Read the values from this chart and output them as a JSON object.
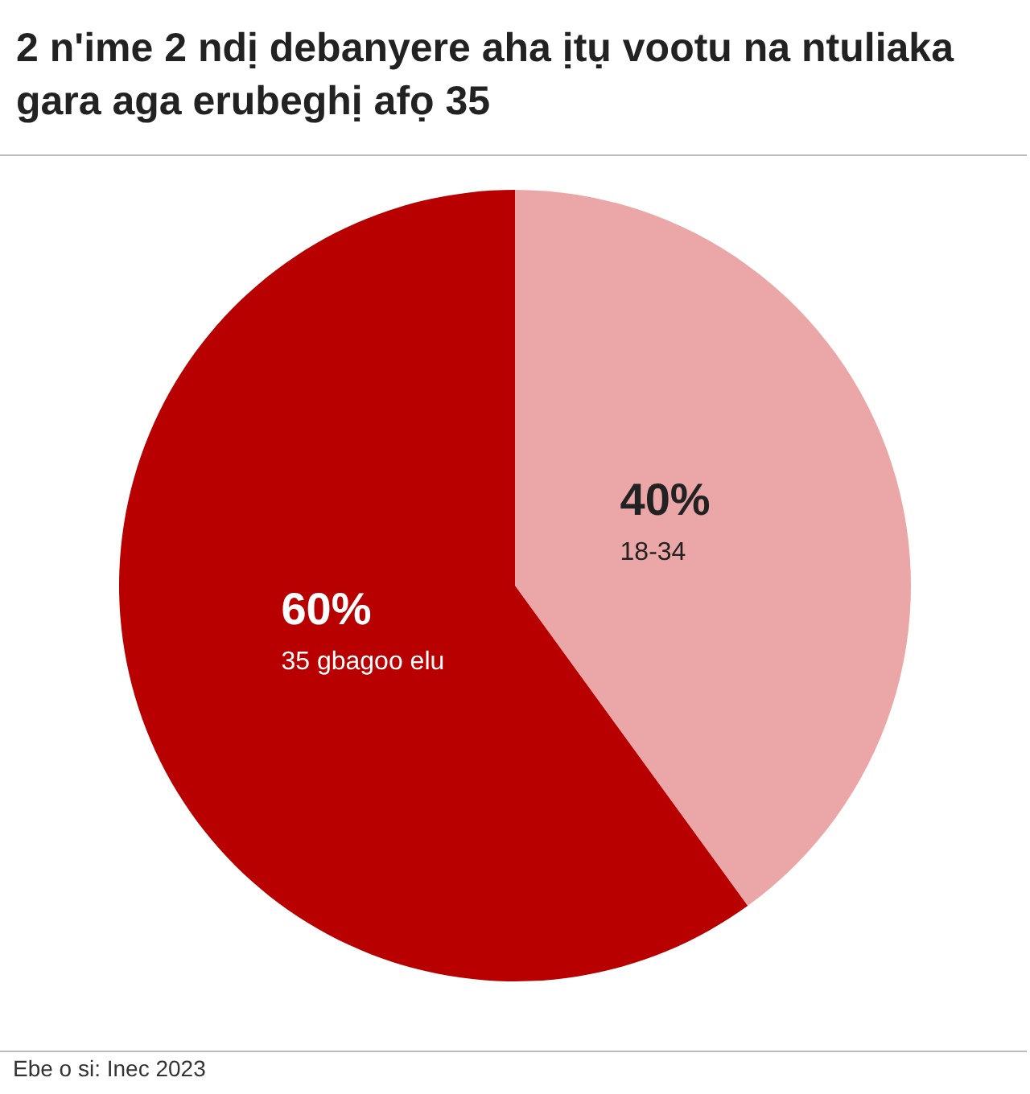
{
  "chart_data": {
    "type": "pie",
    "title": "2 n'ime 2 ndị debanyere aha ịtụ vootu na ntuliaka gara aga erubeghị afọ 35",
    "categories": [
      "18-34",
      "35 gbagoo elu"
    ],
    "values": [
      40,
      60
    ],
    "colors": [
      "#eba7a7",
      "#b80000"
    ],
    "value_labels": [
      "40%",
      "60%"
    ],
    "legend": false,
    "annotations": [
      "Ebe o si: Inec 2023"
    ]
  }
}
